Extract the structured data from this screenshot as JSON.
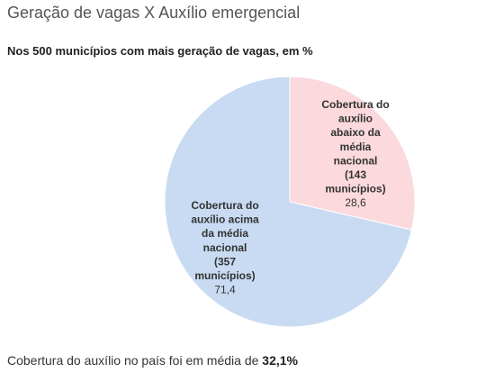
{
  "title": "Geração de vagas X Auxílio emergencial",
  "subtitle": "Nos 500 municípios com mais geração de vagas, em %",
  "footnote": {
    "text": "Cobertura do auxílio no país foi em média de ",
    "highlight": "32,1%"
  },
  "chart_data": {
    "type": "pie",
    "title": "Geração de vagas X Auxílio emergencial",
    "subtitle": "Nos 500 municípios com mais geração de vagas, em %",
    "slices": [
      {
        "label_lines": [
          "Cobertura do",
          "auxílio",
          "abaixo da",
          "média",
          "nacional",
          "(143",
          "municípios)"
        ],
        "value": 28.6,
        "value_label": "28,6",
        "color": "#fbd9dd"
      },
      {
        "label_lines": [
          "Cobertura do",
          "auxílio acima",
          "da média",
          "nacional",
          "(357",
          "municípios)"
        ],
        "value": 71.4,
        "value_label": "71,4",
        "color": "#c8dbf2"
      }
    ]
  }
}
